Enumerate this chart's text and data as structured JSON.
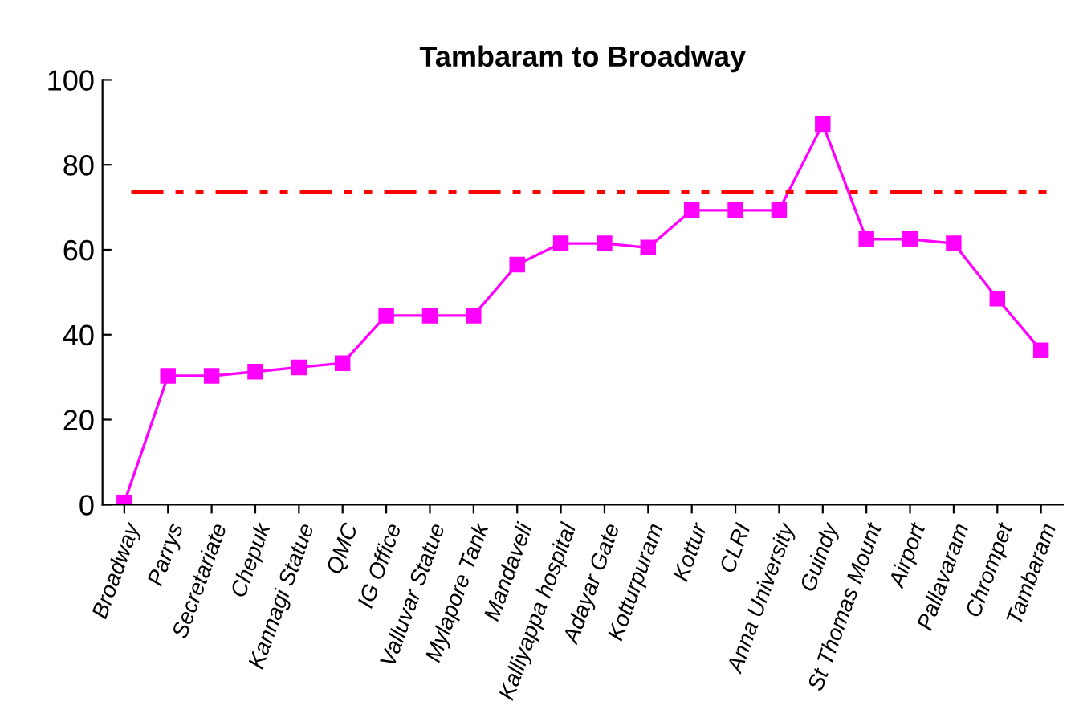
{
  "chart_data": {
    "type": "line",
    "title": "Tambaram to Broadway",
    "categories": [
      "Broadway",
      "Parrys",
      "Secretariate",
      "Chepuk",
      "Kannagi Statue",
      "QMC",
      "IG Office",
      "Valluvar Statue",
      "Mylapore Tank",
      "Mandaveli",
      "Kalliyappa hospital",
      "Adayar Gate",
      "Kotturpuram",
      "Kottur",
      "CLRI",
      "Anna University",
      "Guindy",
      "St Thomas Mount",
      "Airport",
      "Pallavaram",
      "Chrompet",
      "Tambaram"
    ],
    "series": [
      {
        "color": "#ff00ff",
        "values": [
          0.5,
          30.3,
          30.3,
          31.3,
          32.3,
          33.3,
          44.5,
          44.5,
          44.5,
          56.5,
          61.5,
          61.5,
          60.5,
          69.3,
          69.3,
          69.3,
          89.6,
          62.5,
          62.5,
          61.5,
          48.5,
          36.3
        ]
      }
    ],
    "ylim": [
      0,
      100
    ],
    "yticks": [
      0,
      20,
      40,
      60,
      80,
      100
    ],
    "ref_lines": [
      {
        "axis": "y",
        "value": 73.5,
        "color": "#ff0000",
        "line_style": "dashed"
      }
    ],
    "marker": "square",
    "line_style": "solid",
    "grid": false,
    "legend": false
  }
}
